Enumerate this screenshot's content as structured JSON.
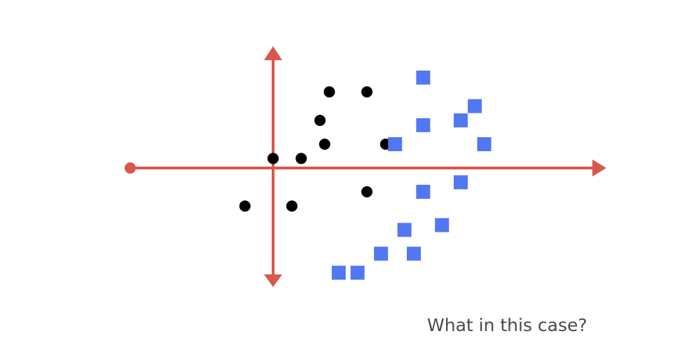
{
  "caption": "What in this case?",
  "chart_data": {
    "type": "scatter",
    "title": "",
    "xlabel": "",
    "ylabel": "",
    "xlim": [
      -3,
      7
    ],
    "ylim": [
      -2.5,
      2.5
    ],
    "grid": false,
    "legend": "none",
    "axis_color": "#d9574c",
    "series": [
      {
        "marker": "circle",
        "color": "#000000",
        "points": [
          [
            1.2,
            1.6
          ],
          [
            2.0,
            1.6
          ],
          [
            1.0,
            1.0
          ],
          [
            1.1,
            0.5
          ],
          [
            2.4,
            0.5
          ],
          [
            0.0,
            0.2
          ],
          [
            0.6,
            0.2
          ],
          [
            2.0,
            -0.5
          ],
          [
            -0.6,
            -0.8
          ],
          [
            0.4,
            -0.8
          ]
        ]
      },
      {
        "marker": "square",
        "color": "#5277f2",
        "points": [
          [
            3.2,
            1.9
          ],
          [
            4.3,
            1.3
          ],
          [
            4.0,
            1.0
          ],
          [
            3.2,
            0.9
          ],
          [
            4.5,
            0.5
          ],
          [
            2.6,
            0.5
          ],
          [
            3.2,
            -0.5
          ],
          [
            4.0,
            -0.3
          ],
          [
            3.6,
            -1.2
          ],
          [
            2.8,
            -1.3
          ],
          [
            1.4,
            -2.2
          ],
          [
            1.8,
            -2.2
          ],
          [
            2.3,
            -1.8
          ],
          [
            3.0,
            -1.8
          ]
        ]
      }
    ]
  }
}
